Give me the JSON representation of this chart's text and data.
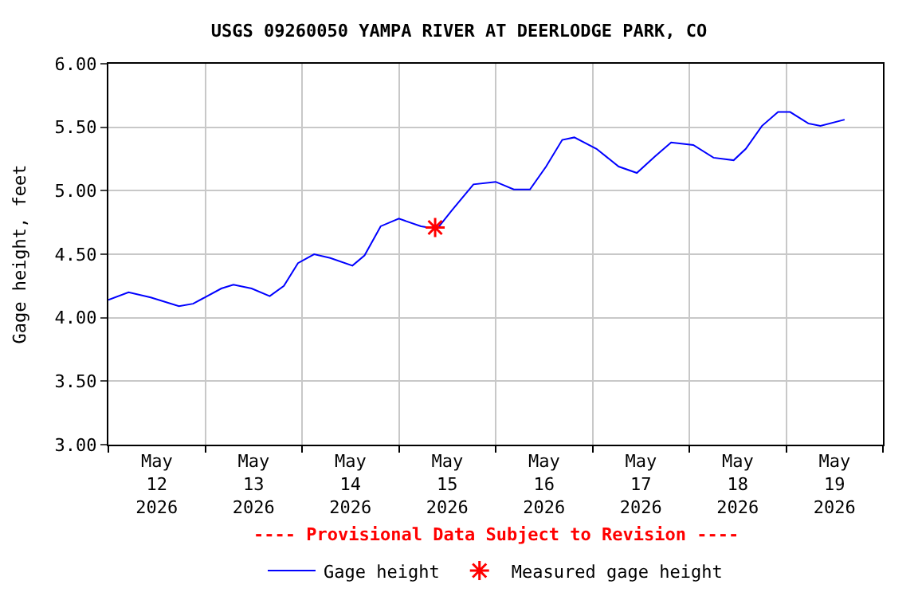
{
  "chart_data": {
    "type": "line",
    "title": "USGS 09260050 YAMPA RIVER AT DEERLODGE PARK, CO",
    "ylabel": "Gage height, feet",
    "series": [
      {
        "name": "Gage height",
        "color": "#0000ff",
        "marker": "none",
        "x": [
          "2026-05-12T00:00",
          "2026-05-12T05:00",
          "2026-05-12T10:30",
          "2026-05-12T17:30",
          "2026-05-12T21:00",
          "2026-05-13T04:00",
          "2026-05-13T07:00",
          "2026-05-13T11:30",
          "2026-05-13T16:00",
          "2026-05-13T19:30",
          "2026-05-13T23:00",
          "2026-05-14T03:00",
          "2026-05-14T07:00",
          "2026-05-14T12:30",
          "2026-05-14T15:30",
          "2026-05-14T19:30",
          "2026-05-15T00:00",
          "2026-05-15T05:30",
          "2026-05-15T09:30",
          "2026-05-15T13:00",
          "2026-05-15T18:30",
          "2026-05-16T00:00",
          "2026-05-16T04:30",
          "2026-05-16T08:30",
          "2026-05-16T12:30",
          "2026-05-16T16:30",
          "2026-05-16T19:30",
          "2026-05-17T01:00",
          "2026-05-17T06:30",
          "2026-05-17T11:00",
          "2026-05-17T15:30",
          "2026-05-17T19:30",
          "2026-05-18T01:00",
          "2026-05-18T06:00",
          "2026-05-18T11:00",
          "2026-05-18T14:00",
          "2026-05-18T18:00",
          "2026-05-18T22:00",
          "2026-05-19T01:00",
          "2026-05-19T05:30",
          "2026-05-19T08:30",
          "2026-05-19T14:30"
        ],
        "values": [
          4.14,
          4.2,
          4.16,
          4.09,
          4.11,
          4.23,
          4.26,
          4.23,
          4.17,
          4.25,
          4.43,
          4.5,
          4.47,
          4.41,
          4.49,
          4.72,
          4.78,
          4.72,
          4.7,
          4.84,
          5.05,
          5.07,
          5.01,
          5.01,
          5.19,
          5.4,
          5.42,
          5.33,
          5.19,
          5.14,
          5.27,
          5.38,
          5.36,
          5.26,
          5.24,
          5.33,
          5.51,
          5.62,
          5.62,
          5.53,
          5.51,
          5.56
        ]
      },
      {
        "name": "Measured gage height",
        "type": "scatter",
        "color": "#ff0000",
        "marker": "cross",
        "x": [
          "2026-05-15T09:00"
        ],
        "values": [
          4.71
        ]
      }
    ],
    "xlim": [
      "2026-05-12T00:00",
      "2026-05-20T00:00"
    ],
    "xticks": [
      {
        "value": "2026-05-12T00:00",
        "label": null
      },
      {
        "value": "2026-05-12T12:00",
        "label": "May\n12\n2026"
      },
      {
        "value": "2026-05-13T00:00",
        "label": null
      },
      {
        "value": "2026-05-13T12:00",
        "label": "May\n13\n2026"
      },
      {
        "value": "2026-05-14T00:00",
        "label": null
      },
      {
        "value": "2026-05-14T12:00",
        "label": "May\n14\n2026"
      },
      {
        "value": "2026-05-15T00:00",
        "label": null
      },
      {
        "value": "2026-05-15T12:00",
        "label": "May\n15\n2026"
      },
      {
        "value": "2026-05-16T00:00",
        "label": null
      },
      {
        "value": "2026-05-16T12:00",
        "label": "May\n16\n2026"
      },
      {
        "value": "2026-05-17T00:00",
        "label": null
      },
      {
        "value": "2026-05-17T12:00",
        "label": "May\n17\n2026"
      },
      {
        "value": "2026-05-18T00:00",
        "label": null
      },
      {
        "value": "2026-05-18T12:00",
        "label": "May\n18\n2026"
      },
      {
        "value": "2026-05-19T00:00",
        "label": null
      },
      {
        "value": "2026-05-19T12:00",
        "label": "May\n19\n2026"
      },
      {
        "value": "2026-05-20T00:00",
        "label": null
      }
    ],
    "ylim": [
      3.0,
      6.0
    ],
    "yticks": [
      {
        "value": 3.0,
        "label": "3.00"
      },
      {
        "value": 3.5,
        "label": "3.50"
      },
      {
        "value": 4.0,
        "label": "4.00"
      },
      {
        "value": 4.5,
        "label": "4.50"
      },
      {
        "value": 5.0,
        "label": "5.00"
      },
      {
        "value": 5.5,
        "label": "5.50"
      },
      {
        "value": 6.0,
        "label": "6.00"
      }
    ],
    "grid": true,
    "legend": "bottom",
    "annotations": [
      "---- Provisional Data Subject to Revision ----"
    ]
  }
}
